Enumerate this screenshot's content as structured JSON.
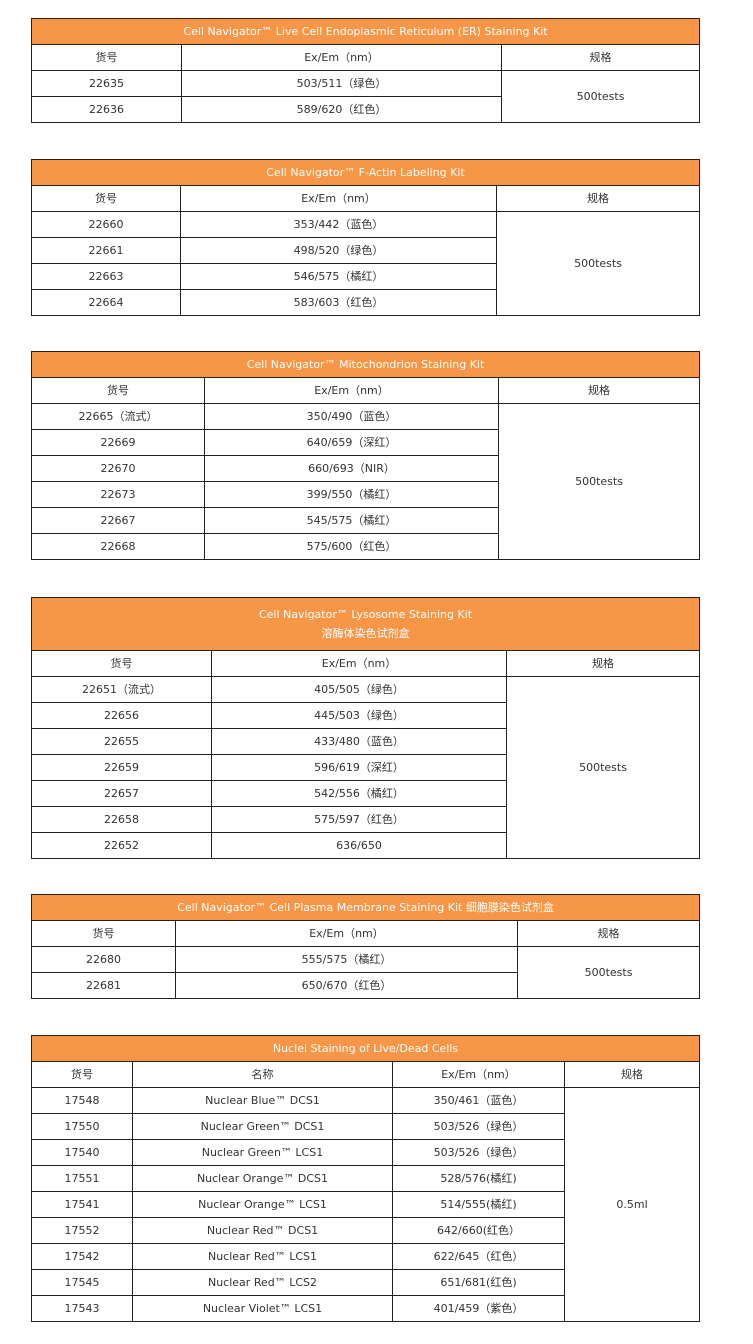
{
  "colors": {
    "header_bg": "#f79646",
    "header_text": "#ffffff",
    "border": "#222222"
  },
  "tables": [
    {
      "title": [
        "Cell Navigator™ Live Cell Endoplasmic Reticulum (ER) Staining Kit"
      ],
      "headers": [
        "货号",
        "Ex/Em（nm）",
        "规格"
      ],
      "rows": [
        [
          "22635",
          "503/511（绿色）"
        ],
        [
          "22636",
          "589/620（红色）"
        ]
      ],
      "spec": "500tests"
    },
    {
      "title": [
        "Cell Navigator™ F-Actin Labeling Kit"
      ],
      "headers": [
        "货号",
        "Ex/Em（nm）",
        "规格"
      ],
      "rows": [
        [
          "22660",
          "353/442（蓝色）"
        ],
        [
          "22661",
          "498/520（绿色）"
        ],
        [
          "22663",
          "546/575（橘红）"
        ],
        [
          "22664",
          "583/603（红色）"
        ]
      ],
      "spec": "500tests"
    },
    {
      "title": [
        "Cell Navigator™ Mitochondrion Staining Kit"
      ],
      "headers": [
        "货号",
        "Ex/Em（nm）",
        "规格"
      ],
      "rows": [
        [
          "22665（流式）",
          "350/490（蓝色）"
        ],
        [
          "22669",
          "640/659（深红）"
        ],
        [
          "22670",
          "660/693（NIR）"
        ],
        [
          "22673",
          "399/550（橘红）"
        ],
        [
          "22667",
          "545/575（橘红）"
        ],
        [
          "22668",
          "575/600（红色）"
        ]
      ],
      "spec": "500tests"
    },
    {
      "title": [
        "Cell Navigator™ Lysosome Staining Kit",
        "溶酶体染色试剂盒"
      ],
      "headers": [
        "货号",
        "Ex/Em（nm）",
        "规格"
      ],
      "rows": [
        [
          "22651（流式）",
          "405/505（绿色）"
        ],
        [
          "22656",
          "445/503（绿色）"
        ],
        [
          "22655",
          "433/480（蓝色）"
        ],
        [
          "22659",
          "596/619（深红）"
        ],
        [
          "22657",
          "542/556（橘红）"
        ],
        [
          "22658",
          "575/597（红色）"
        ],
        [
          "22652",
          "636/650"
        ]
      ],
      "spec": "500tests"
    },
    {
      "title": [
        "Cell Navigator™ Cell Plasma Membrane Staining Kit 细胞膜染色试剂盒"
      ],
      "headers": [
        "货号",
        "Ex/Em（nm）",
        "规格"
      ],
      "rows": [
        [
          "22680",
          "555/575（橘红）"
        ],
        [
          "22681",
          "650/670（红色）"
        ]
      ],
      "spec": "500tests"
    },
    {
      "title": [
        "Nuclei Staining of Live/Dead Cells"
      ],
      "headers": [
        "货号",
        "名称",
        "Ex/Em（nm）",
        "规格"
      ],
      "rows": [
        [
          "17548",
          "Nuclear Blue™ DCS1",
          "350/461（蓝色）"
        ],
        [
          "17550",
          "Nuclear Green™ DCS1",
          "503/526（绿色）"
        ],
        [
          "17540",
          "Nuclear Green™ LCS1",
          "503/526（绿色）"
        ],
        [
          "17551",
          "Nuclear Orange™ DCS1",
          "528/576(橘红)"
        ],
        [
          "17541",
          "Nuclear Orange™ LCS1",
          "514/555(橘红)"
        ],
        [
          "17552",
          "Nuclear Red™ DCS1",
          "642/660(红色）"
        ],
        [
          "17542",
          "Nuclear Red™ LCS1",
          "622/645（红色）"
        ],
        [
          "17545",
          "Nuclear Red™ LCS2",
          "651/681(红色)"
        ],
        [
          "17543",
          "Nuclear Violet™ LCS1",
          "401/459（紫色）"
        ]
      ],
      "spec": "0.5ml"
    }
  ]
}
